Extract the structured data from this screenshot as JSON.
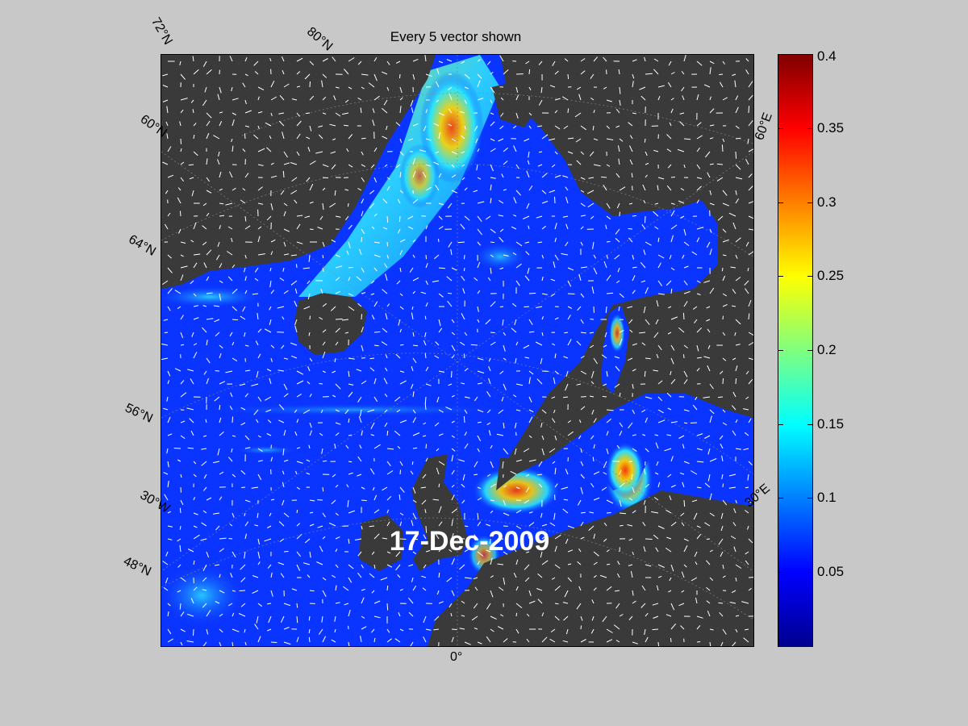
{
  "title": "Every 5 vector shown",
  "date_label": "17-Dec-2009",
  "latitude_labels": [
    "72°N",
    "80°N",
    "60°N",
    "64°N",
    "56°N",
    "48°N"
  ],
  "longitude_labels": [
    "30°W",
    "0°",
    "30°E",
    "60°E"
  ],
  "colorbar": {
    "ticks": [
      "0.4",
      "0.35",
      "0.3",
      "0.25",
      "0.2",
      "0.15",
      "0.1",
      "0.05"
    ],
    "range": [
      0,
      0.4
    ],
    "colormap": "jet"
  },
  "colors": {
    "background": "#c8c8c8",
    "land": "#3a3a3a",
    "vectors": "#ffffff"
  }
}
